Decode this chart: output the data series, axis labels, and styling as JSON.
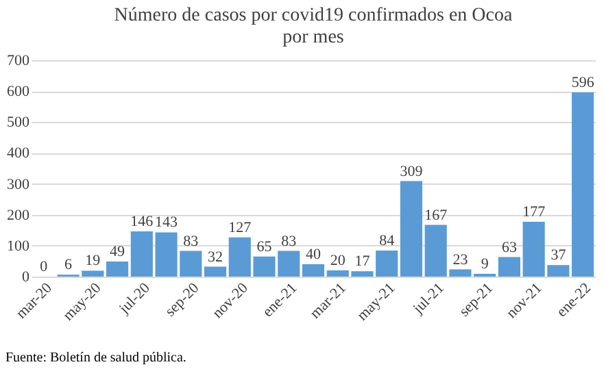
{
  "chart_data": {
    "type": "bar",
    "title": "Número de casos por covid19 confirmados en Ocoa por mes",
    "categories": [
      "mar-20",
      null,
      "may-20",
      null,
      "jul-20",
      null,
      "sep-20",
      null,
      "nov-20",
      null,
      "ene-21",
      null,
      "mar-21",
      null,
      "may-21",
      null,
      "jul-21",
      null,
      "sep-21",
      null,
      "nov-21",
      null,
      "ene-22"
    ],
    "values": [
      0,
      6,
      19,
      49,
      146,
      143,
      83,
      32,
      127,
      65,
      83,
      40,
      20,
      17,
      84,
      309,
      167,
      23,
      9,
      63,
      177,
      37,
      596
    ],
    "color": "#5b9bd5",
    "ylim": [
      0,
      700
    ],
    "yticks": [
      0,
      100,
      200,
      300,
      400,
      500,
      600,
      700
    ],
    "grid": "y",
    "data_labels": true,
    "annotations": [
      "Fuente: Boletín de salud pública."
    ]
  }
}
